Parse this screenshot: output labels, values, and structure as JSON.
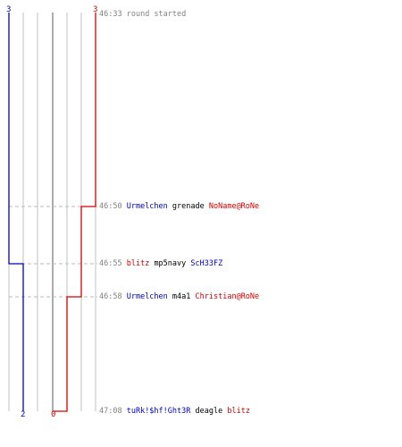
{
  "colors": {
    "team_blue": "#0000c0",
    "team_red": "#d00000",
    "grid": "#c0c0c0",
    "center_line": "#808080",
    "dashed": "#b8b8b8",
    "timestamp": "#808080"
  },
  "scores": {
    "blue_start": "3",
    "red_start": "3",
    "blue_end": "2",
    "red_end": "0"
  },
  "events": [
    {
      "time": "46:33",
      "note": "round started"
    },
    {
      "time": "46:50",
      "killer": "Urmelchen",
      "killer_team": "blue",
      "weapon": "grenade",
      "victim": "NoName@RoNe",
      "victim_team": "red"
    },
    {
      "time": "46:55",
      "killer": "blitz",
      "killer_team": "red",
      "weapon": "mp5navy",
      "victim": "ScH33FZ",
      "victim_team": "blue"
    },
    {
      "time": "46:58",
      "killer": "Urmelchen",
      "killer_team": "blue",
      "weapon": "m4a1",
      "victim": "Christian@RoNe",
      "victim_team": "red"
    },
    {
      "time": "47:08",
      "killer": "tuRk!$hf!Ght3R",
      "killer_team": "blue",
      "weapon": "deagle",
      "victim": "blitz",
      "victim_team": "red"
    }
  ]
}
